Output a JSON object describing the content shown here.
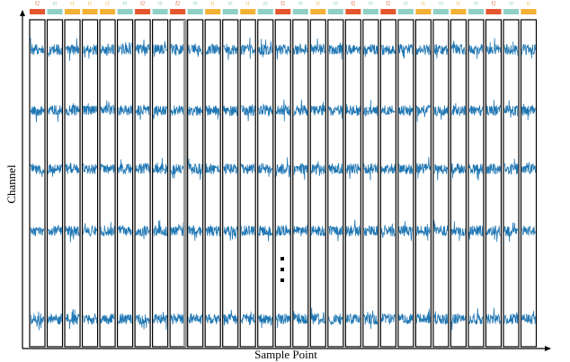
{
  "x_label": "Sample Point",
  "y_label": "Channel",
  "segments": [
    "f2",
    "t0",
    "t1",
    "t1",
    "t1",
    "t0",
    "f2",
    "t0",
    "f2",
    "t0",
    "t1",
    "t0",
    "t1",
    "t0",
    "f2",
    "t0",
    "t1",
    "t0",
    "f2",
    "t0",
    "f2",
    "t0",
    "t1",
    "t0",
    "t1",
    "t0",
    "f2",
    "t0",
    "t1"
  ],
  "label_colors": {
    "f2": "#e4572e",
    "t0": "#8fd0c4",
    "t1": "#f2b134"
  },
  "signal_color": "#1f77b4"
}
